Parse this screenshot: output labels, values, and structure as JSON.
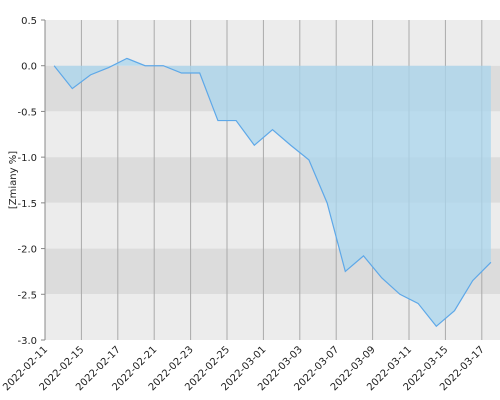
{
  "chart_data": {
    "type": "area",
    "y_label": "[Zmiany %]",
    "categories": [
      "2022-02-11",
      null,
      "2022-02-15",
      null,
      "2022-02-17",
      null,
      "2022-02-21",
      null,
      "2022-02-23",
      null,
      "2022-02-25",
      null,
      "2022-03-01",
      null,
      "2022-03-03",
      null,
      "2022-03-07",
      null,
      "2022-03-09",
      null,
      "2022-03-11",
      null,
      "2022-03-15",
      null,
      "2022-03-17"
    ],
    "values": [
      0.0,
      -0.25,
      -0.1,
      -0.02,
      0.08,
      0.0,
      0.0,
      -0.08,
      -0.08,
      -0.6,
      -0.6,
      -0.87,
      -0.7,
      -0.87,
      -1.03,
      -1.5,
      -2.25,
      -2.08,
      -2.32,
      -2.5,
      -2.6,
      -2.85,
      -2.68,
      -2.35,
      -2.15
    ],
    "color": "#5ea8e8",
    "fill": "#a9d6ee",
    "ylim": [
      -3.0,
      0.5
    ],
    "yticks": [
      0.5,
      {
        "value": 0,
        "label": "0.0"
      },
      -0.5,
      {
        "value": -1,
        "label": "-1.0"
      },
      -1.5,
      {
        "value": -2,
        "label": "-2.0"
      },
      -2.5,
      {
        "value": -3,
        "label": "-3.0"
      }
    ],
    "grid": true
  }
}
